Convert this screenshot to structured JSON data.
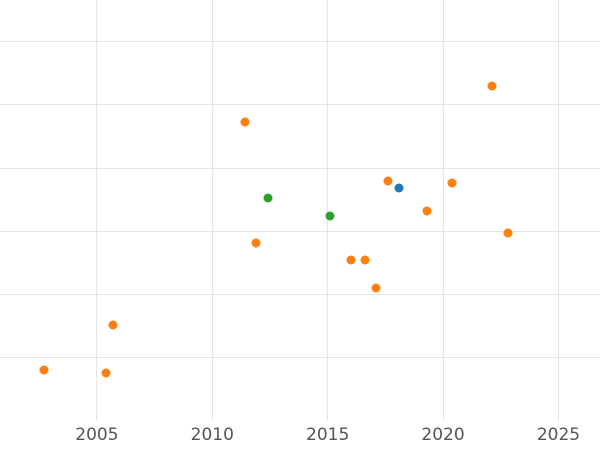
{
  "chart_data": {
    "type": "scatter",
    "title": "",
    "xlabel": "",
    "ylabel": "",
    "grid": true,
    "legend": "none",
    "xlim": [
      2000.8,
      2026.8
    ],
    "ylim": [
      0,
      6.66
    ],
    "x_ticks": [
      2005,
      2010,
      2015,
      2020,
      2025
    ],
    "y_gridlines": [
      0,
      1,
      2,
      3,
      4,
      5,
      6
    ],
    "y_axis_note": "y tick labels not visible in screenshot; values in gridline units from bottom",
    "series": [
      {
        "name": "orange-series",
        "color": "#ff7f0e",
        "points": [
          [
            2002.7,
            0.81
          ],
          [
            2005.4,
            0.76
          ],
          [
            2005.7,
            1.52
          ],
          [
            2011.4,
            4.73
          ],
          [
            2011.9,
            2.82
          ],
          [
            2016.0,
            2.55
          ],
          [
            2016.6,
            2.55
          ],
          [
            2017.1,
            2.1
          ],
          [
            2017.6,
            3.8
          ],
          [
            2019.3,
            3.32
          ],
          [
            2020.4,
            3.77
          ],
          [
            2022.1,
            5.3
          ],
          [
            2022.8,
            2.98
          ]
        ]
      },
      {
        "name": "green-series",
        "color": "#2ca02c",
        "points": [
          [
            2012.4,
            3.53
          ],
          [
            2015.1,
            3.24
          ]
        ]
      },
      {
        "name": "blue-series",
        "color": "#1f77b4",
        "points": [
          [
            2018.1,
            3.69
          ]
        ]
      }
    ],
    "colors": {
      "background": "#ffffff",
      "gridline": "#e3e3e3",
      "tick_text": "#555555"
    }
  }
}
